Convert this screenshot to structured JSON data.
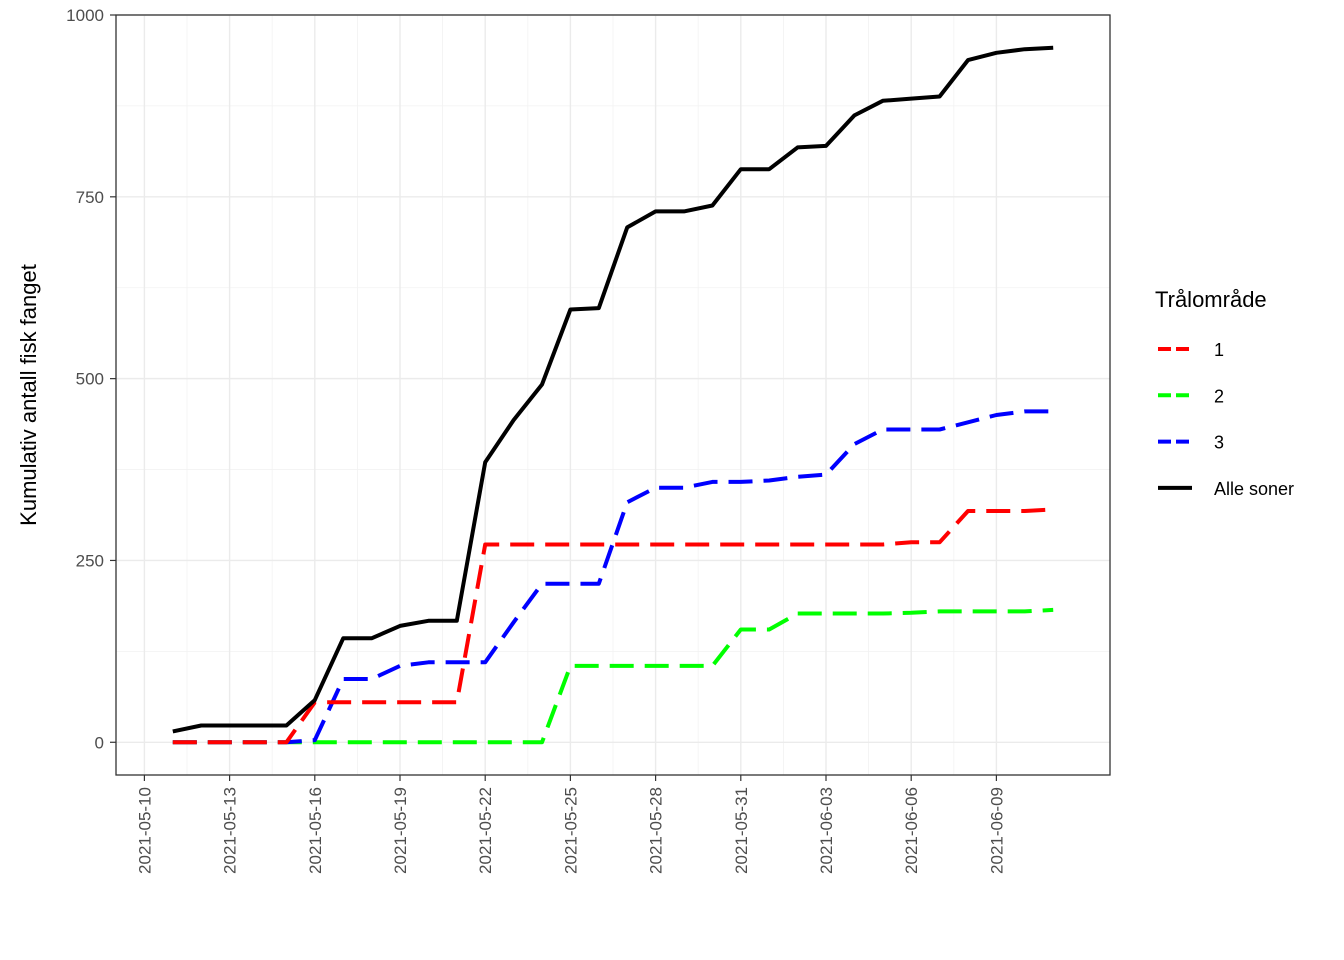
{
  "chart_data": {
    "type": "line",
    "ylabel": "Kumulativ antall fisk fanget",
    "xlabel": "",
    "x_axis_type": "date",
    "xlim": [
      "2021-05-09",
      "2021-06-13"
    ],
    "ylim": [
      -45,
      1000
    ],
    "x_ticks": [
      "2021-05-10",
      "2021-05-13",
      "2021-05-16",
      "2021-05-19",
      "2021-05-22",
      "2021-05-25",
      "2021-05-28",
      "2021-05-31",
      "2021-06-03",
      "2021-06-06",
      "2021-06-09"
    ],
    "y_ticks": [
      0,
      250,
      500,
      750,
      1000
    ],
    "y_tick_labels": [
      "0",
      "250",
      "500",
      "750",
      "1000"
    ],
    "grid": true,
    "legend": {
      "title": "Trålområde",
      "position": "right"
    },
    "series": [
      {
        "name": "1",
        "color": "#ff0000",
        "dashed": true,
        "x": [
          "2021-05-11",
          "2021-05-12",
          "2021-05-13",
          "2021-05-14",
          "2021-05-15",
          "2021-05-16",
          "2021-05-17",
          "2021-05-18",
          "2021-05-19",
          "2021-05-20",
          "2021-05-21",
          "2021-05-22",
          "2021-05-23",
          "2021-05-24",
          "2021-05-25",
          "2021-05-26",
          "2021-05-27",
          "2021-05-28",
          "2021-05-29",
          "2021-05-30",
          "2021-05-31",
          "2021-06-01",
          "2021-06-02",
          "2021-06-03",
          "2021-06-04",
          "2021-06-05",
          "2021-06-06",
          "2021-06-07",
          "2021-06-08",
          "2021-06-09",
          "2021-06-10",
          "2021-06-11"
        ],
        "y": [
          0,
          0,
          0,
          0,
          0,
          55,
          55,
          55,
          55,
          55,
          55,
          272,
          272,
          272,
          272,
          272,
          272,
          272,
          272,
          272,
          272,
          272,
          272,
          272,
          272,
          272,
          275,
          275,
          318,
          318,
          318,
          320
        ]
      },
      {
        "name": "2",
        "color": "#00ff00",
        "dashed": true,
        "x": [
          "2021-05-11",
          "2021-05-12",
          "2021-05-13",
          "2021-05-14",
          "2021-05-15",
          "2021-05-16",
          "2021-05-17",
          "2021-05-18",
          "2021-05-19",
          "2021-05-20",
          "2021-05-21",
          "2021-05-22",
          "2021-05-23",
          "2021-05-24",
          "2021-05-25",
          "2021-05-26",
          "2021-05-27",
          "2021-05-28",
          "2021-05-29",
          "2021-05-30",
          "2021-05-31",
          "2021-06-01",
          "2021-06-02",
          "2021-06-03",
          "2021-06-04",
          "2021-06-05",
          "2021-06-06",
          "2021-06-07",
          "2021-06-08",
          "2021-06-09",
          "2021-06-10",
          "2021-06-11"
        ],
        "y": [
          0,
          0,
          0,
          0,
          0,
          0,
          0,
          0,
          0,
          0,
          0,
          0,
          0,
          0,
          105,
          105,
          105,
          105,
          105,
          105,
          155,
          155,
          177,
          177,
          177,
          177,
          178,
          180,
          180,
          180,
          180,
          182
        ]
      },
      {
        "name": "3",
        "color": "#0000ff",
        "dashed": true,
        "x": [
          "2021-05-11",
          "2021-05-12",
          "2021-05-13",
          "2021-05-14",
          "2021-05-15",
          "2021-05-16",
          "2021-05-17",
          "2021-05-18",
          "2021-05-19",
          "2021-05-20",
          "2021-05-21",
          "2021-05-22",
          "2021-05-23",
          "2021-05-24",
          "2021-05-25",
          "2021-05-26",
          "2021-05-27",
          "2021-05-28",
          "2021-05-29",
          "2021-05-30",
          "2021-05-31",
          "2021-06-01",
          "2021-06-02",
          "2021-06-03",
          "2021-06-04",
          "2021-06-05",
          "2021-06-06",
          "2021-06-07",
          "2021-06-08",
          "2021-06-09",
          "2021-06-10",
          "2021-06-11"
        ],
        "y": [
          0,
          0,
          0,
          0,
          0,
          3,
          87,
          87,
          105,
          110,
          110,
          110,
          165,
          218,
          218,
          218,
          330,
          350,
          350,
          358,
          358,
          360,
          365,
          368,
          410,
          430,
          430,
          430,
          440,
          450,
          455,
          455
        ]
      },
      {
        "name": "Alle soner",
        "color": "#000000",
        "dashed": false,
        "x": [
          "2021-05-11",
          "2021-05-12",
          "2021-05-13",
          "2021-05-14",
          "2021-05-15",
          "2021-05-16",
          "2021-05-17",
          "2021-05-18",
          "2021-05-19",
          "2021-05-20",
          "2021-05-21",
          "2021-05-22",
          "2021-05-23",
          "2021-05-24",
          "2021-05-25",
          "2021-05-26",
          "2021-05-27",
          "2021-05-28",
          "2021-05-29",
          "2021-05-30",
          "2021-05-31",
          "2021-06-01",
          "2021-06-02",
          "2021-06-03",
          "2021-06-04",
          "2021-06-05",
          "2021-06-06",
          "2021-06-07",
          "2021-06-08",
          "2021-06-09",
          "2021-06-10",
          "2021-06-11"
        ],
        "y": [
          15,
          23,
          23,
          23,
          23,
          58,
          143,
          143,
          160,
          167,
          167,
          385,
          443,
          492,
          595,
          597,
          708,
          730,
          730,
          738,
          788,
          788,
          818,
          820,
          862,
          882,
          885,
          888,
          938,
          948,
          953,
          955
        ]
      }
    ]
  }
}
